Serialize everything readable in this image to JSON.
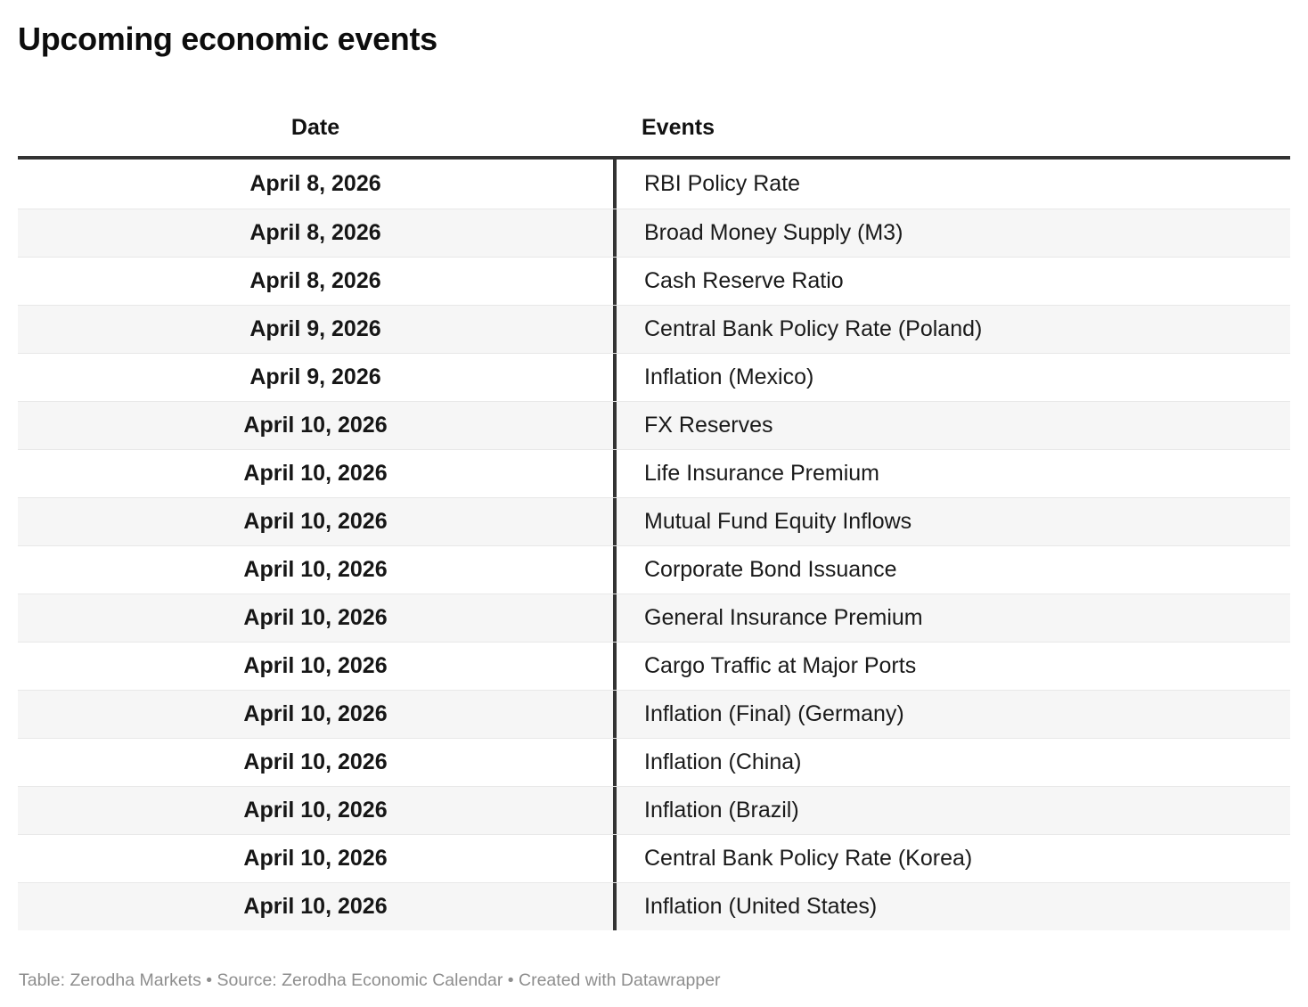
{
  "title": "Upcoming economic events",
  "columns": {
    "date": "Date",
    "events": "Events"
  },
  "footer": "Table: Zerodha Markets • Source: Zerodha Economic Calendar • Created with Datawrapper",
  "colors": {
    "header_rule": "#333333",
    "column_divider": "#333333",
    "row_alternate_bg": "#f6f6f6",
    "row_separator": "#e8e8e8",
    "body_text": "#1a1a1a",
    "footer_text": "#8e8e8e"
  },
  "chart_data": {
    "type": "table",
    "title": "Upcoming economic events",
    "columns": [
      "Date",
      "Events"
    ],
    "layout_hints": {
      "date_column_align": "center",
      "events_column_align": "left",
      "date_column_bold": true,
      "alternating_row_shading": true
    },
    "rows": [
      [
        "April 8, 2026",
        "RBI Policy Rate"
      ],
      [
        "April 8, 2026",
        "Broad Money Supply (M3)"
      ],
      [
        "April 8, 2026",
        "Cash Reserve Ratio"
      ],
      [
        "April 9, 2026",
        "Central Bank Policy Rate (Poland)"
      ],
      [
        "April 9, 2026",
        "Inflation (Mexico)"
      ],
      [
        "April 10, 2026",
        "FX Reserves"
      ],
      [
        "April 10, 2026",
        "Life Insurance Premium"
      ],
      [
        "April 10, 2026",
        "Mutual Fund Equity Inflows"
      ],
      [
        "April 10, 2026",
        "Corporate Bond Issuance"
      ],
      [
        "April 10, 2026",
        "General Insurance Premium"
      ],
      [
        "April 10, 2026",
        "Cargo Traffic at Major Ports"
      ],
      [
        "April 10, 2026",
        "Inflation (Final) (Germany)"
      ],
      [
        "April 10, 2026",
        "Inflation (China)"
      ],
      [
        "April 10, 2026",
        "Inflation (Brazil)"
      ],
      [
        "April 10, 2026",
        "Central Bank Policy Rate (Korea)"
      ],
      [
        "April 10, 2026",
        "Inflation (United States)"
      ]
    ]
  }
}
